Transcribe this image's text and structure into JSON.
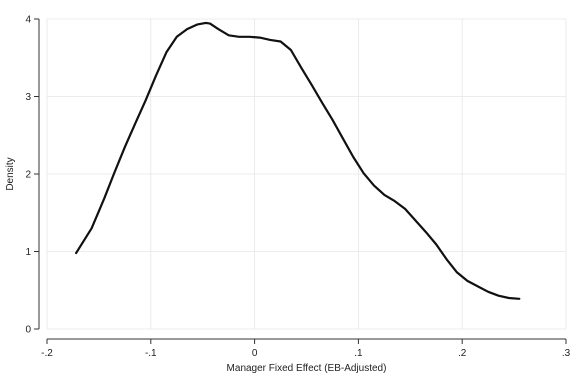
{
  "chart_data": {
    "type": "line",
    "title": "",
    "xlabel": "Manager Fixed Effect (EB-Adjusted)",
    "ylabel": "Density",
    "xlim": [
      -0.2,
      0.3
    ],
    "ylim": [
      0,
      4
    ],
    "x_ticks": [
      -0.2,
      -0.1,
      0,
      0.1,
      0.2,
      0.3
    ],
    "x_tick_labels": [
      "-.2",
      "-.1",
      "0",
      ".1",
      ".2",
      ".3"
    ],
    "y_ticks": [
      0,
      1,
      2,
      3,
      4
    ],
    "y_tick_labels": [
      "0",
      "1",
      "2",
      "3",
      "4"
    ],
    "grid": true,
    "line_color": "#111111",
    "series": [
      {
        "x": [
          -0.172,
          -0.157,
          -0.145,
          -0.135,
          -0.125,
          -0.115,
          -0.105,
          -0.095,
          -0.085,
          -0.075,
          -0.065,
          -0.055,
          -0.047,
          -0.043,
          -0.035,
          -0.025,
          -0.015,
          -0.005,
          0.005,
          0.015,
          0.025,
          0.035,
          0.045,
          0.055,
          0.065,
          0.075,
          0.085,
          0.095,
          0.105,
          0.115,
          0.125,
          0.135,
          0.145,
          0.155,
          0.165,
          0.175,
          0.185,
          0.195,
          0.205,
          0.215,
          0.225,
          0.235,
          0.245,
          0.255
        ],
        "y": [
          0.98,
          1.3,
          1.68,
          2.02,
          2.35,
          2.65,
          2.95,
          3.27,
          3.57,
          3.77,
          3.87,
          3.93,
          3.95,
          3.94,
          3.87,
          3.79,
          3.77,
          3.77,
          3.76,
          3.73,
          3.71,
          3.6,
          3.37,
          3.15,
          2.92,
          2.7,
          2.46,
          2.22,
          2.01,
          1.85,
          1.73,
          1.65,
          1.55,
          1.4,
          1.25,
          1.09,
          0.9,
          0.73,
          0.62,
          0.55,
          0.48,
          0.43,
          0.4,
          0.39
        ]
      }
    ]
  }
}
